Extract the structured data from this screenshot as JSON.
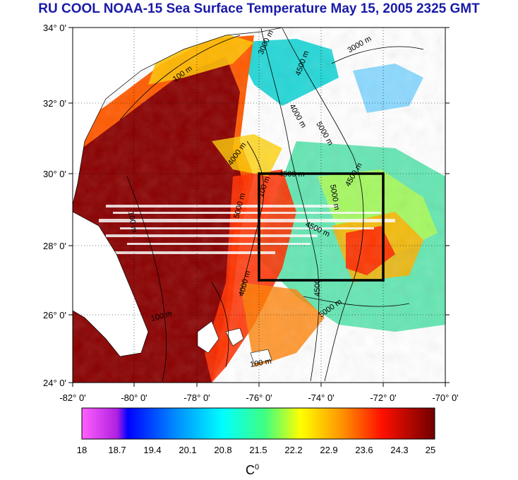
{
  "title": "RU COOL  NOAA-15 Sea Surface Temperature May 15, 2005 2325 GMT",
  "lat_labels": [
    "34° 0'",
    "32° 0'",
    "30° 0'",
    "28° 0'",
    "26° 0'",
    "24° 0'"
  ],
  "lon_labels": [
    "-82° 0'",
    "-80° 0'",
    "-78° 0'",
    "-76° 0'",
    "-74° 0'",
    "-72° 0'",
    "-70° 0'"
  ],
  "contour_labels": [
    "100 m",
    "3000 m",
    "4500 m",
    "4000 m",
    "5000 m",
    "3000 m",
    "4500 m",
    "4000 m",
    "100 m",
    "4500 m",
    "5000 m",
    "100 m",
    "5000 m",
    "4500",
    "4000 m",
    "100 m",
    "4500 m",
    "5000 m",
    "100 m"
  ],
  "colorbar": {
    "tick_labels": [
      "18",
      "18.7",
      "19.4",
      "20.1",
      "20.8",
      "21.5",
      "22.2",
      "22.9",
      "23.6",
      "24.3",
      "25"
    ],
    "unit": "C",
    "unit_sup": "0"
  },
  "study_box": {
    "lon_min": -76,
    "lon_max": -72,
    "lat_min": 27,
    "lat_max": 30
  },
  "colors": {
    "title": "#1a1aa8",
    "land": "#ffffff",
    "warm": "#7a0000",
    "cool": "#00e0e0"
  }
}
